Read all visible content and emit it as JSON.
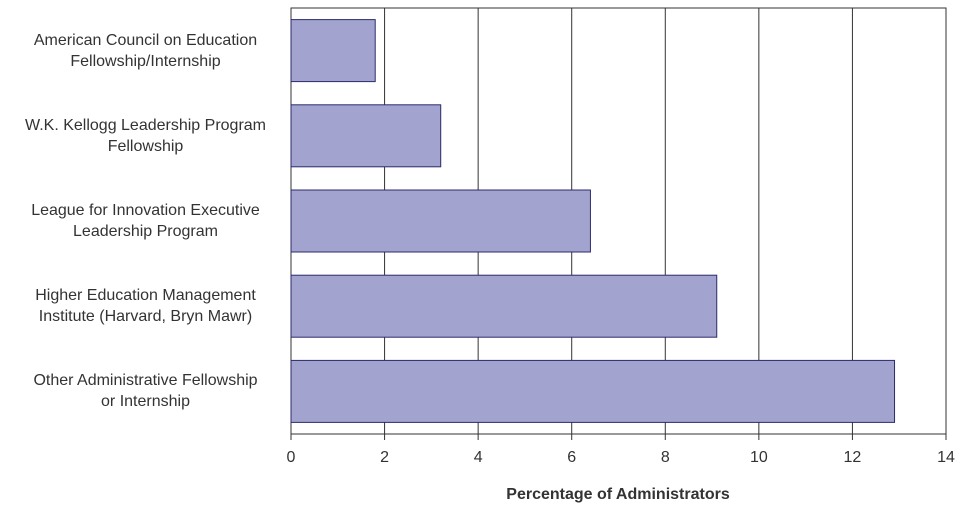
{
  "chart_data": {
    "type": "bar",
    "orientation": "horizontal",
    "categories": [
      "American Council on Education\nFellowship/Internship",
      "W.K. Kellogg Leadership Program\nFellowship",
      "League for Innovation Executive\nLeadership Program",
      "Higher Education Management\nInstitute (Harvard, Bryn Mawr)",
      "Other Administrative Fellowship\nor Internship"
    ],
    "values": [
      1.8,
      3.2,
      6.4,
      9.1,
      12.9
    ],
    "color": "#a3a3cf",
    "x_label": "Percentage of Administrators",
    "xlim": [
      0,
      14
    ],
    "xticks": [
      0,
      2,
      4,
      6,
      8,
      10,
      12,
      14
    ],
    "grid": true
  }
}
